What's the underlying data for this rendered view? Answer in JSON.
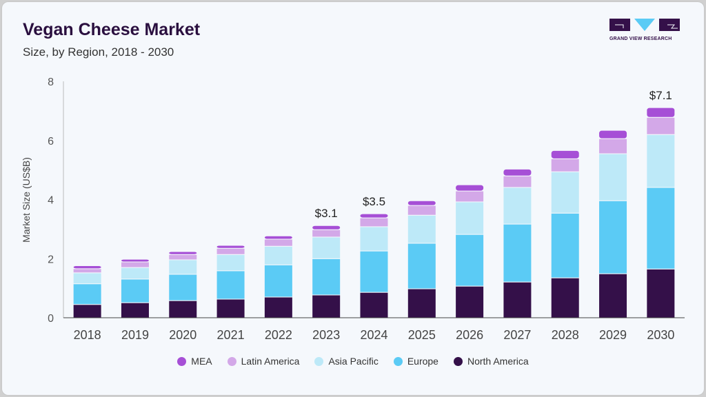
{
  "header": {
    "title": "Vegan Cheese Market",
    "subtitle": "Size, by Region, 2018 - 2030",
    "logo_text": "GRAND VIEW RESEARCH"
  },
  "chart_data": {
    "type": "bar",
    "stacked": true,
    "title": "Vegan Cheese Market",
    "subtitle": "Size, by Region, 2018 - 2030",
    "xlabel": "",
    "ylabel": "Market Size (US$B)",
    "ylim": [
      0,
      8
    ],
    "yticks": [
      0,
      2,
      4,
      6,
      8
    ],
    "grid": false,
    "legend": "bottom",
    "categories": [
      "2018",
      "2019",
      "2020",
      "2021",
      "2022",
      "2023",
      "2024",
      "2025",
      "2026",
      "2027",
      "2028",
      "2029",
      "2030"
    ],
    "series": [
      {
        "name": "North America",
        "color": "#341049",
        "values": [
          0.45,
          0.51,
          0.58,
          0.63,
          0.7,
          0.77,
          0.86,
          0.98,
          1.07,
          1.21,
          1.35,
          1.49,
          1.65
        ]
      },
      {
        "name": "Europe",
        "color": "#5bcbf5",
        "values": [
          0.7,
          0.8,
          0.89,
          0.96,
          1.09,
          1.23,
          1.4,
          1.54,
          1.75,
          1.96,
          2.19,
          2.47,
          2.76
        ]
      },
      {
        "name": "Asia Pacific",
        "color": "#bde9f8",
        "values": [
          0.37,
          0.39,
          0.49,
          0.55,
          0.63,
          0.73,
          0.82,
          0.95,
          1.1,
          1.24,
          1.4,
          1.59,
          1.79
        ]
      },
      {
        "name": "Latin America",
        "color": "#d3a8e8",
        "values": [
          0.14,
          0.19,
          0.18,
          0.21,
          0.24,
          0.25,
          0.3,
          0.33,
          0.37,
          0.39,
          0.44,
          0.51,
          0.58
        ]
      },
      {
        "name": "MEA",
        "color": "#a64fd6",
        "values": [
          0.1,
          0.09,
          0.1,
          0.1,
          0.11,
          0.14,
          0.14,
          0.16,
          0.21,
          0.23,
          0.28,
          0.28,
          0.33
        ]
      }
    ],
    "data_labels": [
      {
        "category": "2023",
        "text": "$3.1"
      },
      {
        "category": "2024",
        "text": "$3.5"
      },
      {
        "category": "2030",
        "text": "$7.1"
      }
    ],
    "legend_order": [
      "MEA",
      "Latin America",
      "Asia Pacific",
      "Europe",
      "North America"
    ]
  }
}
